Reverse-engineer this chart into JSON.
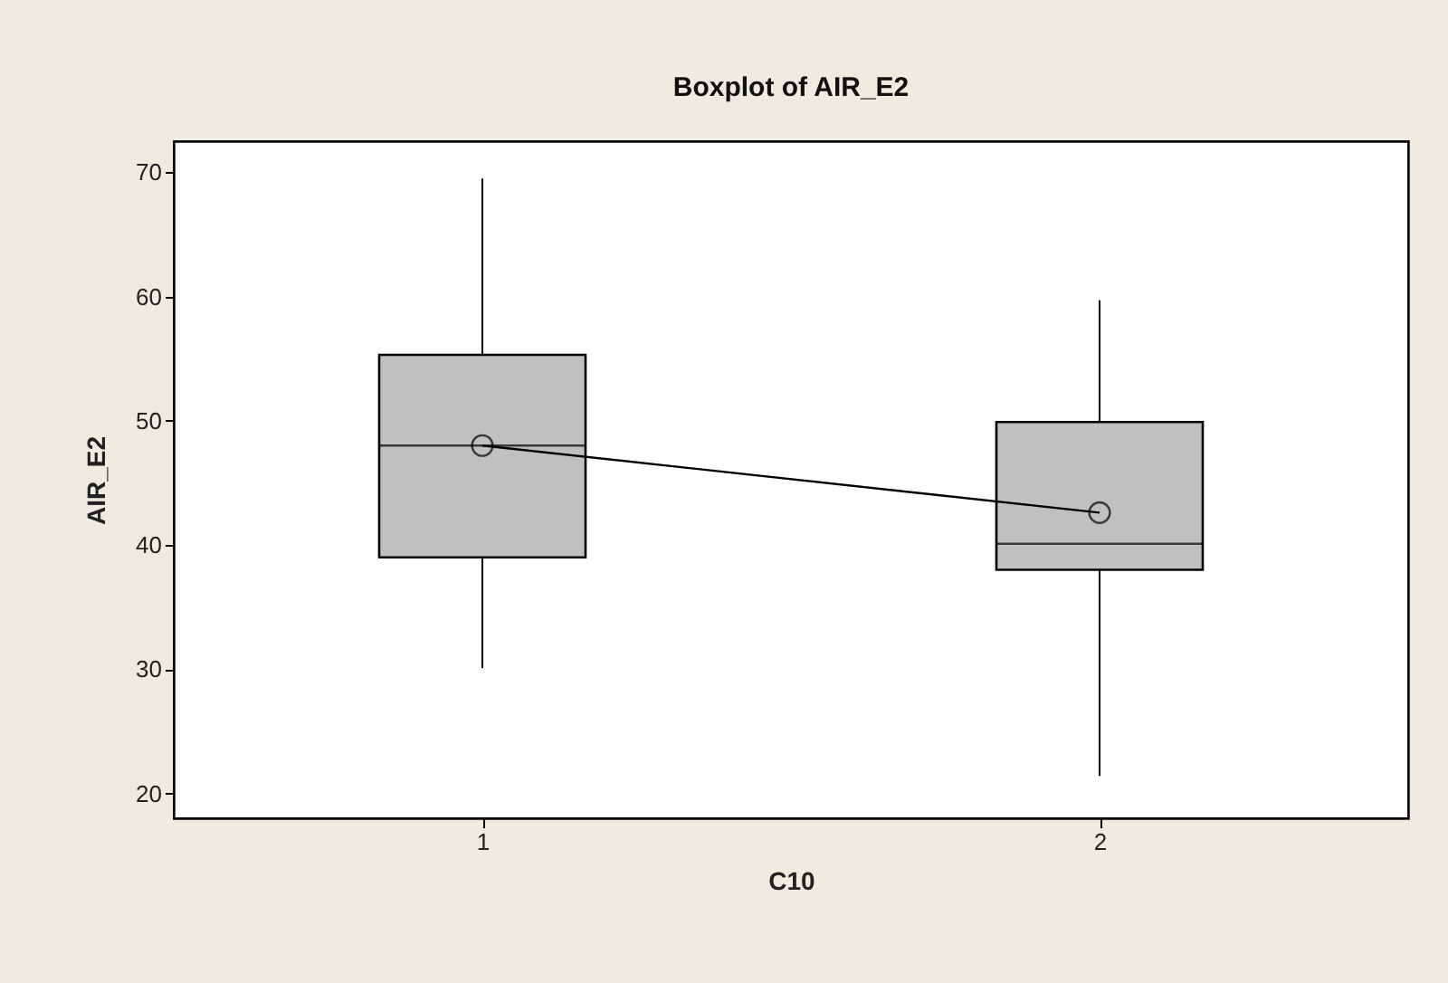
{
  "chart_data": {
    "type": "box",
    "title": "Boxplot of AIR_E2",
    "xlabel": "C10",
    "ylabel": "AIR_E2",
    "categories": [
      "1",
      "2"
    ],
    "ylim": [
      18,
      72.5
    ],
    "yticks": [
      20,
      30,
      40,
      50,
      60,
      70
    ],
    "series": [
      {
        "color": "#c0c0c0",
        "boxes": [
          {
            "low": 30.1,
            "q1": 39.0,
            "median": 48.0,
            "q3": 55.3,
            "high": 69.5
          },
          {
            "low": 21.4,
            "q1": 38.0,
            "median": 40.1,
            "q3": 49.9,
            "high": 59.7
          }
        ]
      },
      {
        "type": "line",
        "color": "#000000",
        "values": [
          48.0,
          42.6
        ],
        "marker": "circle"
      }
    ]
  }
}
